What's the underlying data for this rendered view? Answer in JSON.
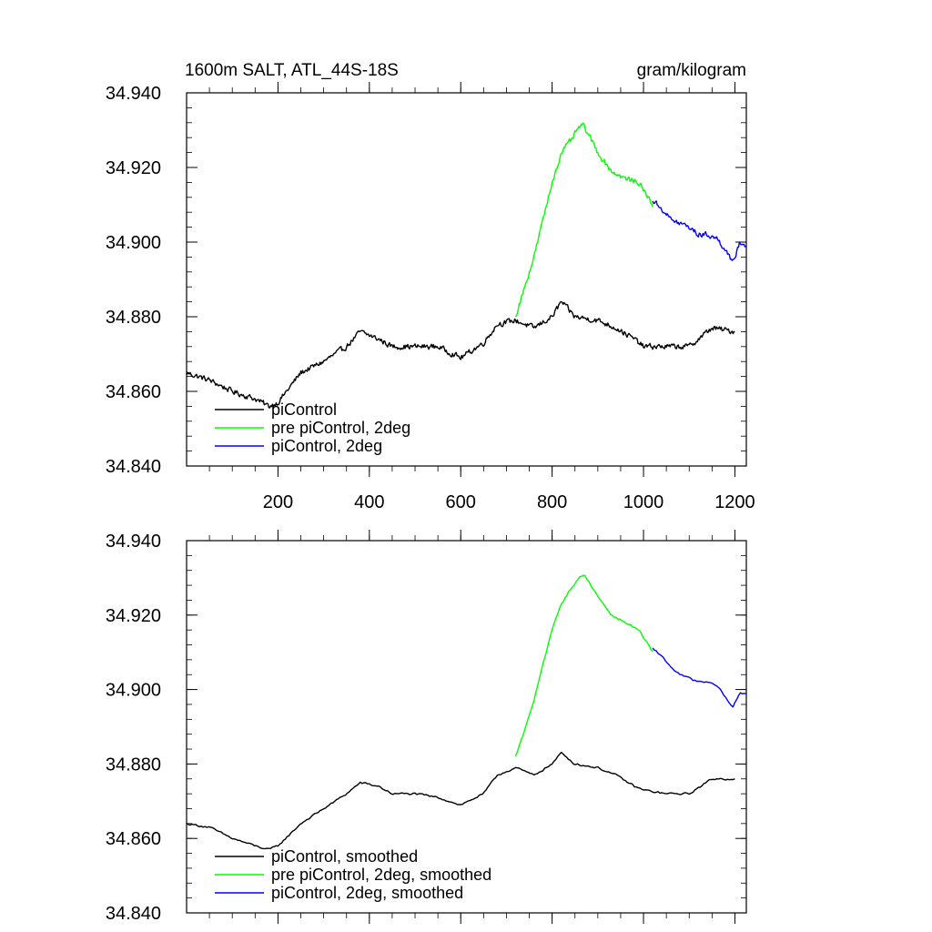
{
  "figure": {
    "title_left": "1600m SALT, ATL_44S-18S",
    "title_right": "gram/kilogram"
  },
  "chart_data": [
    {
      "type": "line",
      "title": "1600m SALT, ATL_44S-18S",
      "units": "gram/kilogram",
      "xlabel": "",
      "ylabel": "",
      "xlim": [
        0,
        1225
      ],
      "ylim": [
        34.84,
        34.94
      ],
      "xticks": [
        200,
        400,
        600,
        800,
        1000,
        1200
      ],
      "xtick_labels": [
        "200",
        "400",
        "600",
        "800",
        "1000",
        "1200"
      ],
      "yticks": [
        34.84,
        34.86,
        34.88,
        34.9,
        34.92,
        34.94
      ],
      "ytick_labels": [
        "34.840",
        "34.860",
        "34.880",
        "34.900",
        "34.920",
        "34.940"
      ],
      "legend": {
        "position": "lower-left",
        "entries": [
          {
            "label": "piControl",
            "color": "#000000"
          },
          {
            "label": "pre piControl, 2deg",
            "color": "#00ff00"
          },
          {
            "label": "piControl, 2deg",
            "color": "#0000ff"
          }
        ]
      },
      "series": [
        {
          "name": "piControl",
          "color": "#000000",
          "x": [
            0,
            50,
            100,
            150,
            180,
            200,
            250,
            300,
            350,
            380,
            420,
            450,
            500,
            550,
            600,
            650,
            680,
            720,
            760,
            800,
            820,
            850,
            900,
            940,
            980,
            1000,
            1050,
            1100,
            1150,
            1200
          ],
          "y": [
            34.865,
            34.863,
            34.86,
            34.858,
            34.856,
            34.857,
            34.865,
            34.868,
            34.872,
            34.876,
            34.874,
            34.872,
            34.872,
            34.872,
            34.869,
            34.873,
            34.878,
            34.879,
            34.877,
            34.88,
            34.884,
            34.88,
            34.879,
            34.877,
            34.874,
            34.872,
            34.872,
            34.872,
            34.877,
            34.876
          ]
        },
        {
          "name": "pre piControl, 2deg",
          "color": "#00ff00",
          "x": [
            720,
            740,
            760,
            780,
            800,
            820,
            840,
            860,
            870,
            900,
            930,
            960,
            990,
            1020
          ],
          "y": [
            34.88,
            34.888,
            34.896,
            34.906,
            34.916,
            34.924,
            34.927,
            34.931,
            34.931,
            34.924,
            34.919,
            34.917,
            34.916,
            34.91
          ]
        },
        {
          "name": "piControl, 2deg",
          "color": "#0000ff",
          "x": [
            1020,
            1040,
            1060,
            1080,
            1100,
            1120,
            1140,
            1160,
            1180,
            1195,
            1210,
            1225
          ],
          "y": [
            34.911,
            34.909,
            34.906,
            34.905,
            34.904,
            34.902,
            34.902,
            34.901,
            34.898,
            34.894,
            34.9,
            34.899
          ]
        }
      ]
    },
    {
      "type": "line",
      "title": "",
      "xlabel": "",
      "ylabel": "",
      "xlim": [
        0,
        1225
      ],
      "ylim": [
        34.84,
        34.94
      ],
      "xticks": [
        200,
        400,
        600,
        800,
        1000,
        1200
      ],
      "yticks": [
        34.84,
        34.86,
        34.88,
        34.9,
        34.92,
        34.94
      ],
      "ytick_labels": [
        "34.840",
        "34.860",
        "34.880",
        "34.900",
        "34.920",
        "34.940"
      ],
      "legend": {
        "position": "lower-left",
        "entries": [
          {
            "label": "piControl, smoothed",
            "color": "#000000"
          },
          {
            "label": "pre piControl, 2deg, smoothed",
            "color": "#00ff00"
          },
          {
            "label": "piControl, 2deg, smoothed",
            "color": "#0000ff"
          }
        ]
      },
      "series": [
        {
          "name": "piControl, smoothed",
          "color": "#000000",
          "x": [
            0,
            50,
            100,
            150,
            180,
            200,
            250,
            300,
            350,
            380,
            420,
            450,
            500,
            550,
            600,
            650,
            680,
            720,
            760,
            800,
            820,
            850,
            900,
            940,
            980,
            1000,
            1050,
            1100,
            1150,
            1200
          ],
          "y": [
            34.864,
            34.863,
            34.86,
            34.858,
            34.857,
            34.858,
            34.864,
            34.868,
            34.872,
            34.875,
            34.874,
            34.872,
            34.872,
            34.871,
            34.869,
            34.872,
            34.877,
            34.879,
            34.877,
            34.88,
            34.883,
            34.88,
            34.879,
            34.877,
            34.874,
            34.873,
            34.872,
            34.872,
            34.876,
            34.876
          ]
        },
        {
          "name": "pre piControl, 2deg, smoothed",
          "color": "#00ff00",
          "x": [
            720,
            740,
            760,
            780,
            800,
            820,
            840,
            860,
            870,
            900,
            930,
            960,
            990,
            1020
          ],
          "y": [
            34.882,
            34.889,
            34.897,
            34.907,
            34.916,
            34.923,
            34.927,
            34.93,
            34.931,
            34.925,
            34.92,
            34.918,
            34.916,
            34.91
          ]
        },
        {
          "name": "piControl, 2deg, smoothed",
          "color": "#0000ff",
          "x": [
            1020,
            1040,
            1060,
            1080,
            1100,
            1120,
            1140,
            1160,
            1180,
            1195,
            1210,
            1225
          ],
          "y": [
            34.911,
            34.909,
            34.906,
            34.904,
            34.903,
            34.902,
            34.902,
            34.901,
            34.898,
            34.895,
            34.899,
            34.899
          ]
        }
      ]
    }
  ]
}
